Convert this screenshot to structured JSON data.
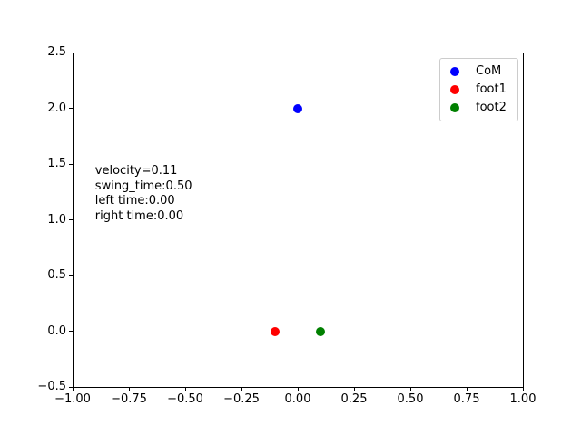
{
  "figure": {
    "background": "#ffffff",
    "spine_color": "#000000",
    "legend_border_color": "#cccccc"
  },
  "chart_data": {
    "type": "scatter",
    "title": "",
    "xlabel": "",
    "ylabel": "",
    "xlim": [
      -1.0,
      1.0
    ],
    "ylim": [
      -0.5,
      2.5
    ],
    "grid": false,
    "x_ticks": [
      {
        "value": -1.0,
        "label": "−1.00"
      },
      {
        "value": -0.75,
        "label": "−0.75"
      },
      {
        "value": -0.5,
        "label": "−0.50"
      },
      {
        "value": -0.25,
        "label": "−0.25"
      },
      {
        "value": 0.0,
        "label": "0.00"
      },
      {
        "value": 0.25,
        "label": "0.25"
      },
      {
        "value": 0.5,
        "label": "0.50"
      },
      {
        "value": 0.75,
        "label": "0.75"
      },
      {
        "value": 1.0,
        "label": "1.00"
      }
    ],
    "y_ticks": [
      {
        "value": -0.5,
        "label": "−0.5"
      },
      {
        "value": 0.0,
        "label": "0.0"
      },
      {
        "value": 0.5,
        "label": "0.5"
      },
      {
        "value": 1.0,
        "label": "1.0"
      },
      {
        "value": 1.5,
        "label": "1.5"
      },
      {
        "value": 2.0,
        "label": "2.0"
      },
      {
        "value": 2.5,
        "label": "2.5"
      }
    ],
    "series": [
      {
        "name": "CoM",
        "color": "#0000ff",
        "marker": "circle",
        "points": [
          [
            0.0,
            2.0
          ]
        ]
      },
      {
        "name": "foot1",
        "color": "#ff0000",
        "marker": "circle",
        "points": [
          [
            -0.1,
            0.0
          ]
        ]
      },
      {
        "name": "foot2",
        "color": "#008000",
        "marker": "circle",
        "points": [
          [
            0.1,
            0.0
          ]
        ]
      }
    ],
    "legend": {
      "position": "upper-right",
      "entries": [
        "CoM",
        "foot1",
        "foot2"
      ]
    },
    "annotation": {
      "x": -0.9,
      "y": 1.5,
      "lines": [
        "velocity=0.11",
        "swing_time:0.50",
        "left time:0.00",
        "right time:0.00"
      ]
    }
  }
}
